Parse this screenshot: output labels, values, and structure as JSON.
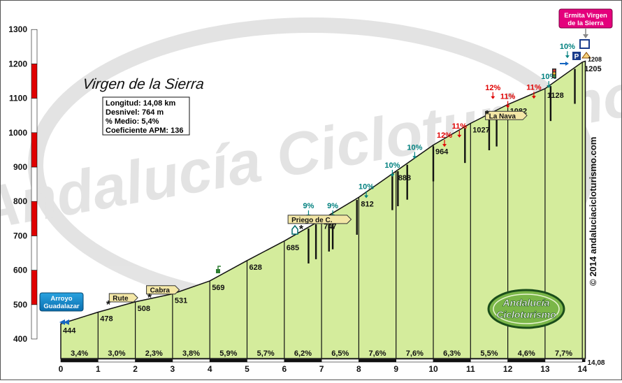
{
  "chart_data": {
    "type": "area",
    "title": "Virgen de la Sierra",
    "xlim": [
      0,
      14.08
    ],
    "ylim": [
      400,
      1300
    ],
    "x_ticks": [
      "0",
      "1",
      "2",
      "3",
      "4",
      "5",
      "6",
      "7",
      "8",
      "9",
      "10",
      "11",
      "12",
      "13",
      "14"
    ],
    "y_ticks": [
      "400",
      "500",
      "600",
      "700",
      "800",
      "900",
      "1000",
      "1100",
      "1200",
      "1300"
    ],
    "x_end_label": "14,08",
    "profile": [
      {
        "x": 0,
        "y": 444
      },
      {
        "x": 1,
        "y": 478
      },
      {
        "x": 2,
        "y": 508
      },
      {
        "x": 3,
        "y": 531
      },
      {
        "x": 4,
        "y": 569
      },
      {
        "x": 5,
        "y": 628
      },
      {
        "x": 6,
        "y": 685
      },
      {
        "x": 7,
        "y": 747
      },
      {
        "x": 8,
        "y": 812
      },
      {
        "x": 9,
        "y": 888
      },
      {
        "x": 10,
        "y": 964
      },
      {
        "x": 11,
        "y": 1027
      },
      {
        "x": 12,
        "y": 1082
      },
      {
        "x": 13,
        "y": 1128
      },
      {
        "x": 14,
        "y": 1205
      },
      {
        "x": 14.08,
        "y": 1208
      }
    ],
    "elevation_labels": [
      {
        "x": 0,
        "text": "444"
      },
      {
        "x": 1,
        "text": "478"
      },
      {
        "x": 2,
        "text": "508"
      },
      {
        "x": 3,
        "text": "531"
      },
      {
        "x": 4,
        "text": "569"
      },
      {
        "x": 5,
        "text": "628"
      },
      {
        "x": 6,
        "text": "685"
      },
      {
        "x": 7,
        "text": "747"
      },
      {
        "x": 8,
        "text": "812"
      },
      {
        "x": 9,
        "text": "888"
      },
      {
        "x": 10,
        "text": "964"
      },
      {
        "x": 11,
        "text": "1027"
      },
      {
        "x": 12,
        "text": "1082"
      },
      {
        "x": 13,
        "text": "1128"
      },
      {
        "x": 14,
        "text": "1205"
      }
    ],
    "summit_label": "1208",
    "segment_gradients": [
      "3,4%",
      "3,0%",
      "2,3%",
      "3,8%",
      "5,9%",
      "5,7%",
      "6,2%",
      "6,5%",
      "7,6%",
      "7,6%",
      "6,3%",
      "5,5%",
      "4,6%",
      "7,7%"
    ],
    "max_gradients": [
      {
        "x": 6.65,
        "y": 780,
        "text": "9%",
        "color": "#00807f"
      },
      {
        "x": 7.3,
        "y": 780,
        "text": "9%",
        "color": "#00807f"
      },
      {
        "x": 8.2,
        "y": 836,
        "text": "10%",
        "color": "#00807f"
      },
      {
        "x": 8.9,
        "y": 898,
        "text": "10%",
        "color": "#00807f"
      },
      {
        "x": 9.5,
        "y": 950,
        "text": "10%",
        "color": "#00807f"
      },
      {
        "x": 10.3,
        "y": 985,
        "text": "12%",
        "color": "#e00000"
      },
      {
        "x": 10.7,
        "y": 1012,
        "text": "11%",
        "color": "#e00000"
      },
      {
        "x": 11.6,
        "y": 1124,
        "text": "12%",
        "color": "#e00000"
      },
      {
        "x": 12.0,
        "y": 1098,
        "text": "11%",
        "color": "#e00000"
      },
      {
        "x": 12.7,
        "y": 1125,
        "text": "11%",
        "color": "#e00000"
      },
      {
        "x": 13.1,
        "y": 1156,
        "text": "10%",
        "color": "#00807f"
      },
      {
        "x": 13.6,
        "y": 1243,
        "text": "10%",
        "color": "#00807f"
      }
    ],
    "place_labels": [
      {
        "x": 1.3,
        "y": 532,
        "text": "Rute",
        "dir": "right"
      },
      {
        "x": 2.3,
        "y": 555,
        "text": "Cabra",
        "dir": "right"
      },
      {
        "x": 6.1,
        "y": 760,
        "text": "Priego de C.",
        "dir": "right"
      },
      {
        "x": 11.4,
        "y": 1062,
        "text": "La Nava",
        "dir": "right"
      }
    ],
    "colors": {
      "fill": "#d4ec9c",
      "line": "#111111",
      "scale_red": "#e00000",
      "accent": "#0a7fc2",
      "destination": "#e4007c"
    }
  },
  "info_box": {
    "length": "Longitud: 14,08 km",
    "climb": "Desnivel: 764 m",
    "average": "% Medio: 5,4%",
    "coefficient": "Coeficiente APM: 136"
  },
  "start_label": [
    "Arroyo",
    "Guadalazar"
  ],
  "end_label": [
    "Ermita Virgen",
    "de la Sierra"
  ],
  "watermark": "Andalucía Cicloturismo",
  "logo_text": [
    "Andalucía",
    "Cicloturismo"
  ],
  "copyright": "© 2014 andaluciacicloturismo.com"
}
